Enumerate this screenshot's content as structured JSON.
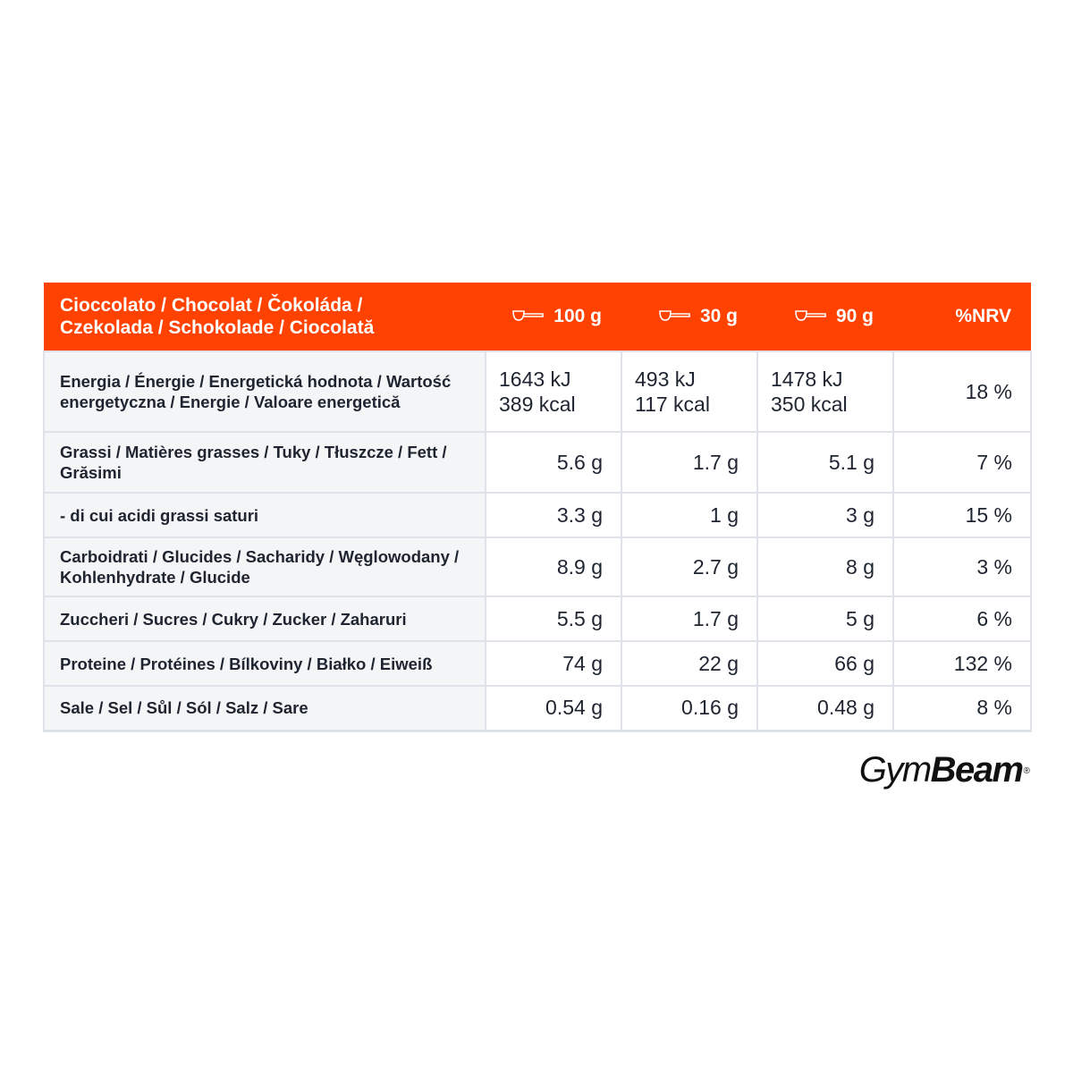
{
  "header": {
    "product_line1": "Cioccolato / Chocolat / Čokoláda /",
    "product_line2": "Czekolada / Schokolade / Ciocolată",
    "col_100g": "100 g",
    "col_30g": "30 g",
    "col_90g": "90 g",
    "col_nrv": "%NRV",
    "serving_icon": "scoop-icon"
  },
  "energy": {
    "name": "Energia / Énergie / Energetická hodnota / Wartość energetyczna / Energie / Valoare energetică",
    "v100_kj": "1643 kJ",
    "v100_kcal": "389 kcal",
    "v30_kj": "493 kJ",
    "v30_kcal": "117 kcal",
    "v90_kj": "1478 kJ",
    "v90_kcal": "350 kcal",
    "nrv": "18 %"
  },
  "rows": [
    {
      "name": "Grassi / Matières grasses / Tuky / Tłuszcze / Fett / Grăsimi",
      "v100": "5.6 g",
      "v30": "1.7 g",
      "v90": "5.1 g",
      "nrv": "7 %"
    },
    {
      "name": "- di cui acidi grassi saturi",
      "v100": "3.3 g",
      "v30": "1 g",
      "v90": "3 g",
      "nrv": "15 %"
    },
    {
      "name": "Carboidrati / Glucides / Sacharidy / Węglowodany / Kohlenhydrate / Glucide",
      "v100": "8.9 g",
      "v30": "2.7 g",
      "v90": "8 g",
      "nrv": "3 %"
    },
    {
      "name": "Zuccheri / Sucres / Cukry / Zucker / Zaharuri",
      "v100": "5.5 g",
      "v30": "1.7 g",
      "v90": "5 g",
      "nrv": "6 %"
    },
    {
      "name": "Proteine / Protéines / Bílkoviny / Białko / Eiweiß",
      "v100": "74 g",
      "v30": "22 g",
      "v90": "66 g",
      "nrv": "132 %"
    },
    {
      "name": "Sale / Sel / Sůl / Sól / Salz / Sare",
      "v100": "0.54 g",
      "v30": "0.16 g",
      "v90": "0.48 g",
      "nrv": "8 %"
    }
  ],
  "brand": {
    "part1": "Gym",
    "part2": "Beam",
    "registered": "®"
  },
  "colors": {
    "header_bg": "#ff4200",
    "name_cell_bg": "#f4f5f7",
    "border": "#dfe3e9",
    "text": "#1e2430"
  }
}
